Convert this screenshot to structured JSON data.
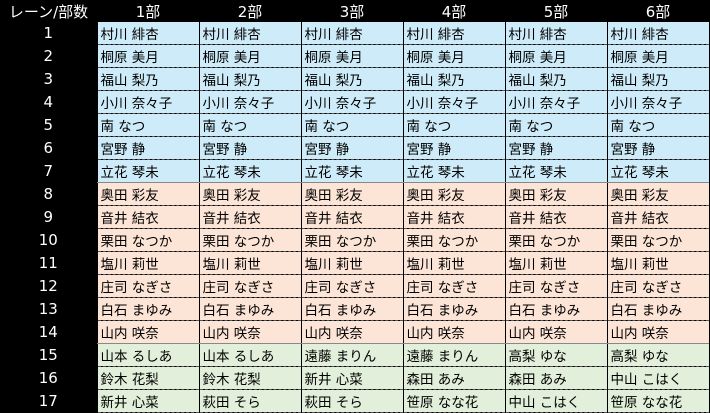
{
  "header": {
    "corner": "レーン/部数",
    "parts": [
      "1部",
      "2部",
      "3部",
      "4部",
      "5部",
      "6部"
    ]
  },
  "colors": {
    "blue": "#cdebf8",
    "orange": "#fce4d6",
    "green": "#e2efda"
  },
  "rows": [
    {
      "lane": "1",
      "group": "blue",
      "names": [
        "村川 緋杏",
        "村川 緋杏",
        "村川 緋杏",
        "村川 緋杏",
        "村川 緋杏",
        "村川 緋杏"
      ]
    },
    {
      "lane": "2",
      "group": "blue",
      "names": [
        "桐原 美月",
        "桐原 美月",
        "桐原 美月",
        "桐原 美月",
        "桐原 美月",
        "桐原 美月"
      ]
    },
    {
      "lane": "3",
      "group": "blue",
      "names": [
        "福山 梨乃",
        "福山 梨乃",
        "福山 梨乃",
        "福山 梨乃",
        "福山 梨乃",
        "福山 梨乃"
      ]
    },
    {
      "lane": "4",
      "group": "blue",
      "names": [
        "小川 奈々子",
        "小川 奈々子",
        "小川 奈々子",
        "小川 奈々子",
        "小川 奈々子",
        "小川 奈々子"
      ]
    },
    {
      "lane": "5",
      "group": "blue",
      "names": [
        "南 なつ",
        "南 なつ",
        "南 なつ",
        "南 なつ",
        "南 なつ",
        "南 なつ"
      ]
    },
    {
      "lane": "6",
      "group": "blue",
      "names": [
        "宮野 静",
        "宮野 静",
        "宮野 静",
        "宮野 静",
        "宮野 静",
        "宮野 静"
      ]
    },
    {
      "lane": "7",
      "group": "blue",
      "names": [
        "立花 琴未",
        "立花 琴未",
        "立花 琴未",
        "立花 琴未",
        "立花 琴未",
        "立花 琴未"
      ]
    },
    {
      "lane": "8",
      "group": "orange",
      "names": [
        "奥田 彩友",
        "奥田 彩友",
        "奥田 彩友",
        "奥田 彩友",
        "奥田 彩友",
        "奥田 彩友"
      ]
    },
    {
      "lane": "9",
      "group": "orange",
      "names": [
        "音井 結衣",
        "音井 結衣",
        "音井 結衣",
        "音井 結衣",
        "音井 結衣",
        "音井 結衣"
      ]
    },
    {
      "lane": "10",
      "group": "orange",
      "names": [
        "栗田 なつか",
        "栗田 なつか",
        "栗田 なつか",
        "栗田 なつか",
        "栗田 なつか",
        "栗田 なつか"
      ]
    },
    {
      "lane": "11",
      "group": "orange",
      "names": [
        "塩川 莉世",
        "塩川 莉世",
        "塩川 莉世",
        "塩川 莉世",
        "塩川 莉世",
        "塩川 莉世"
      ]
    },
    {
      "lane": "12",
      "group": "orange",
      "names": [
        "庄司 なぎさ",
        "庄司 なぎさ",
        "庄司 なぎさ",
        "庄司 なぎさ",
        "庄司 なぎさ",
        "庄司 なぎさ"
      ]
    },
    {
      "lane": "13",
      "group": "orange",
      "names": [
        "白石 まゆみ",
        "白石 まゆみ",
        "白石 まゆみ",
        "白石 まゆみ",
        "白石 まゆみ",
        "白石 まゆみ"
      ]
    },
    {
      "lane": "14",
      "group": "orange",
      "names": [
        "山内 咲奈",
        "山内 咲奈",
        "山内 咲奈",
        "山内 咲奈",
        "山内 咲奈",
        "山内 咲奈"
      ]
    },
    {
      "lane": "15",
      "group": "green",
      "names": [
        "山本 るしあ",
        "山本 るしあ",
        "遠藤 まりん",
        "遠藤 まりん",
        "高梨 ゆな",
        "高梨 ゆな"
      ]
    },
    {
      "lane": "16",
      "group": "green",
      "names": [
        "鈴木 花梨",
        "鈴木 花梨",
        "新井 心菜",
        "森田 あみ",
        "森田 あみ",
        "中山 こはく"
      ]
    },
    {
      "lane": "17",
      "group": "green",
      "names": [
        "新井 心菜",
        "萩田 そら",
        "萩田 そら",
        "笹原 なな花",
        "中山 こはく",
        "笹原 なな花"
      ]
    }
  ]
}
